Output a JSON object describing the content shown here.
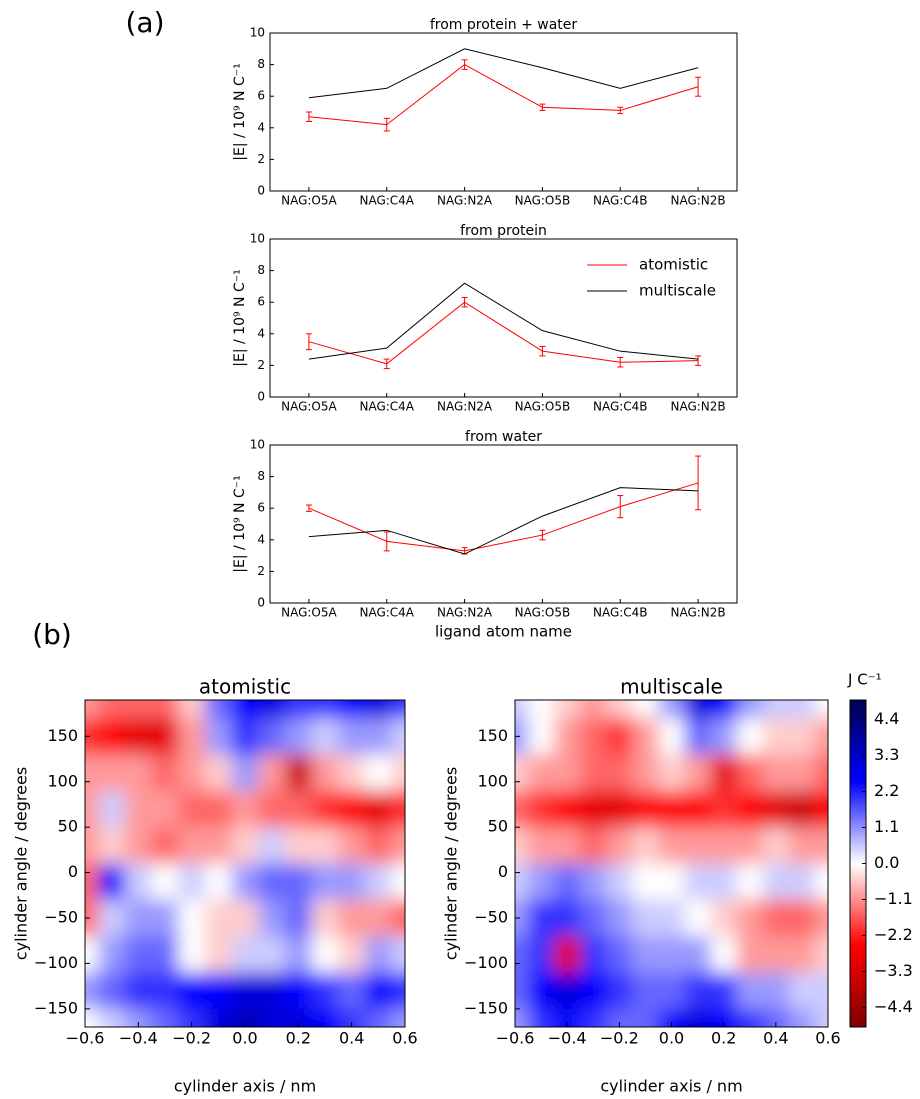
{
  "labels": {
    "a": "(a)",
    "b": "(b)"
  },
  "chart_data": [
    {
      "type": "line",
      "title": "from protein + water",
      "ylabel": "|E| / 10⁹ N C⁻¹",
      "categories": [
        "NAG:O5A",
        "NAG:C4A",
        "NAG:N2A",
        "NAG:O5B",
        "NAG:C4B",
        "NAG:N2B"
      ],
      "ylim": [
        0,
        10
      ],
      "yticks": [
        0,
        2,
        4,
        6,
        8,
        10
      ],
      "series": [
        {
          "color": "#ff0000",
          "values": [
            4.7,
            4.2,
            8.0,
            5.3,
            5.1,
            6.6
          ],
          "errors": [
            0.3,
            0.4,
            0.3,
            0.2,
            0.2,
            0.6
          ]
        },
        {
          "color": "#000000",
          "values": [
            5.9,
            6.5,
            9.0,
            7.8,
            6.5,
            7.8
          ]
        }
      ]
    },
    {
      "type": "line",
      "title": "from protein",
      "ylabel": "|E| / 10⁹ N C⁻¹",
      "categories": [
        "NAG:O5A",
        "NAG:C4A",
        "NAG:N2A",
        "NAG:O5B",
        "NAG:C4B",
        "NAG:N2B"
      ],
      "ylim": [
        0,
        10
      ],
      "yticks": [
        0,
        2,
        4,
        6,
        8,
        10
      ],
      "legend": "upper right",
      "series": [
        {
          "name": "atomistic",
          "color": "#ff0000",
          "values": [
            3.5,
            2.1,
            6.0,
            2.9,
            2.2,
            2.3
          ],
          "errors": [
            0.5,
            0.3,
            0.3,
            0.3,
            0.3,
            0.3
          ]
        },
        {
          "name": "multiscale",
          "color": "#000000",
          "values": [
            2.4,
            3.1,
            7.2,
            4.2,
            2.9,
            2.4
          ]
        }
      ]
    },
    {
      "type": "line",
      "title": "from water",
      "ylabel": "|E| / 10⁹ N C⁻¹",
      "xlabel": "ligand atom name",
      "categories": [
        "NAG:O5A",
        "NAG:C4A",
        "NAG:N2A",
        "NAG:O5B",
        "NAG:C4B",
        "NAG:N2B"
      ],
      "ylim": [
        0,
        10
      ],
      "yticks": [
        0,
        2,
        4,
        6,
        8,
        10
      ],
      "series": [
        {
          "color": "#ff0000",
          "values": [
            6.0,
            3.9,
            3.3,
            4.3,
            6.1,
            7.6
          ],
          "errors": [
            0.2,
            0.6,
            0.2,
            0.3,
            0.7,
            1.7
          ]
        },
        {
          "color": "#000000",
          "values": [
            4.2,
            4.6,
            3.1,
            5.5,
            7.3,
            7.1
          ]
        }
      ]
    },
    {
      "type": "heatmap",
      "title": "atomistic",
      "xlabel": "cylinder axis / nm",
      "ylabel": "cylinder angle / degrees",
      "colormap": "seismic_r",
      "zlim": [
        -5,
        5
      ],
      "xlim": [
        -0.6,
        0.6
      ],
      "ylim": [
        -170,
        190
      ],
      "xticks": [
        {
          "value": -0.6,
          "label": "−0.6"
        },
        {
          "value": -0.4,
          "label": "−0.4"
        },
        {
          "value": -0.2,
          "label": "−0.2"
        },
        {
          "value": 0,
          "label": "0.0"
        },
        0.2,
        0.4,
        0.6
      ],
      "yticks": [
        {
          "value": -150,
          "label": "−150"
        },
        {
          "value": -100,
          "label": "−100"
        },
        {
          "value": -50,
          "label": "−50"
        },
        0,
        50,
        100,
        150
      ],
      "x": [
        -0.6,
        -0.5,
        -0.4,
        -0.3,
        -0.2,
        -0.1,
        0,
        0.1,
        0.2,
        0.3,
        0.4,
        0.5,
        0.6
      ],
      "y": [
        190,
        150,
        110,
        70,
        30,
        -10,
        -50,
        -90,
        -130,
        -170
      ],
      "z": [
        [
          -1,
          -1.5,
          -1.5,
          -1.5,
          -0.5,
          1.5,
          2.5,
          3,
          2,
          2,
          2.5,
          3,
          2
        ],
        [
          -2,
          -2.5,
          -3,
          -3,
          -1,
          1,
          2,
          1.5,
          1,
          0.5,
          1,
          1,
          0.5
        ],
        [
          -1,
          -1,
          -1,
          -1.5,
          -1,
          -0.5,
          1,
          -1,
          -3.5,
          -1,
          -0.5,
          0,
          -0.5
        ],
        [
          -1,
          0.5,
          -1,
          -1,
          -1.5,
          -1.5,
          -1,
          -1.5,
          -1.5,
          -2,
          -2.5,
          -3,
          -2
        ],
        [
          -1,
          -0.5,
          -1,
          -1.5,
          -1,
          -1,
          -0.5,
          0.5,
          -0.5,
          -0.5,
          -1,
          -1.5,
          -1
        ],
        [
          -1.5,
          2.5,
          0.5,
          0,
          0.5,
          0,
          1,
          1.5,
          1.5,
          1,
          1,
          0.5,
          0
        ],
        [
          -1.5,
          0.5,
          1,
          1,
          0,
          -0.5,
          -0.5,
          1,
          1.5,
          -0.5,
          -1,
          -1,
          -1.5
        ],
        [
          0,
          1,
          1.5,
          1.5,
          0,
          -0.5,
          0.5,
          0.5,
          1,
          0,
          -0.5,
          1,
          0.5
        ],
        [
          1,
          1.5,
          2,
          2,
          2.5,
          2.5,
          3,
          3,
          2.5,
          2,
          1.5,
          2.5,
          2
        ],
        [
          0,
          0.5,
          1,
          1.5,
          2,
          3,
          3.5,
          3,
          3,
          2.5,
          2,
          1.5,
          1
        ]
      ]
    },
    {
      "type": "heatmap",
      "title": "multiscale",
      "xlabel": "cylinder axis / nm",
      "ylabel": "cylinder angle / degrees",
      "colormap": "seismic_r",
      "zlim": [
        -5,
        5
      ],
      "xlim": [
        -0.6,
        0.6
      ],
      "ylim": [
        -170,
        190
      ],
      "xticks": [
        {
          "value": -0.6,
          "label": "−0.6"
        },
        {
          "value": -0.4,
          "label": "−0.4"
        },
        {
          "value": -0.2,
          "label": "−0.2"
        },
        {
          "value": 0,
          "label": "0.0"
        },
        0.2,
        0.4,
        0.6
      ],
      "yticks": [
        {
          "value": -150,
          "label": "−150"
        },
        {
          "value": -100,
          "label": "−100"
        },
        {
          "value": -50,
          "label": "−50"
        },
        0,
        50,
        100,
        150
      ],
      "x": [
        -0.6,
        -0.5,
        -0.4,
        -0.3,
        -0.2,
        -0.1,
        0,
        0.1,
        0.2,
        0.3,
        0.4,
        0.5,
        0.6
      ],
      "y": [
        190,
        150,
        110,
        70,
        30,
        -10,
        -50,
        -90,
        -130,
        -170
      ],
      "z": [
        [
          0.5,
          0,
          -0.5,
          -1,
          -0.5,
          0,
          1,
          3,
          2.5,
          1,
          0.5,
          0.5,
          0
        ],
        [
          1,
          0,
          -1,
          -1.5,
          -2,
          -1,
          0,
          1.5,
          1,
          0,
          -0.5,
          -0.5,
          -1
        ],
        [
          -0.5,
          -1,
          -1,
          -1.5,
          -1.5,
          -1,
          -0.5,
          -1,
          -3,
          -1.5,
          -1,
          -1,
          -1.5
        ],
        [
          -1.5,
          -2,
          -2.5,
          -3,
          -3,
          -2.5,
          -2.5,
          -2.5,
          -2,
          -2.5,
          -3,
          -3.5,
          -2.5
        ],
        [
          -0.5,
          -1,
          -1,
          -1.5,
          -1,
          -0.5,
          -1,
          -1,
          -1,
          -1,
          -0.5,
          -1,
          -1
        ],
        [
          0.5,
          1,
          1.5,
          1,
          0.5,
          0,
          0,
          0.5,
          0.5,
          0,
          0.5,
          0.5,
          0
        ],
        [
          1,
          2,
          2,
          1.5,
          1,
          0.5,
          0.5,
          0,
          -0.5,
          -1,
          -1.5,
          -1.5,
          -1
        ],
        [
          1.5,
          2,
          -3,
          2,
          1.5,
          1,
          1,
          1,
          0,
          -1,
          -1,
          -1,
          -0.5
        ],
        [
          1.5,
          2.5,
          3,
          2.5,
          2,
          1.5,
          1.5,
          2,
          2,
          1,
          1,
          0.5,
          0.5
        ],
        [
          1,
          2,
          2.5,
          2,
          1.5,
          1.5,
          2.5,
          3,
          2.5,
          2,
          1.5,
          1,
          0.5
        ]
      ]
    },
    {
      "type": "colorbar",
      "title": "J C⁻¹",
      "colormap": "seismic_r",
      "zlim": [
        -5,
        5
      ],
      "ticks": [
        {
          "value": -4.4,
          "label": "−4.4"
        },
        {
          "value": -3.3,
          "label": "−3.3"
        },
        {
          "value": -2.2,
          "label": "−2.2"
        },
        {
          "value": -1.1,
          "label": "−1.1"
        },
        {
          "value": 0,
          "label": "0.0"
        },
        1.1,
        2.2,
        3.3,
        4.4
      ]
    }
  ]
}
